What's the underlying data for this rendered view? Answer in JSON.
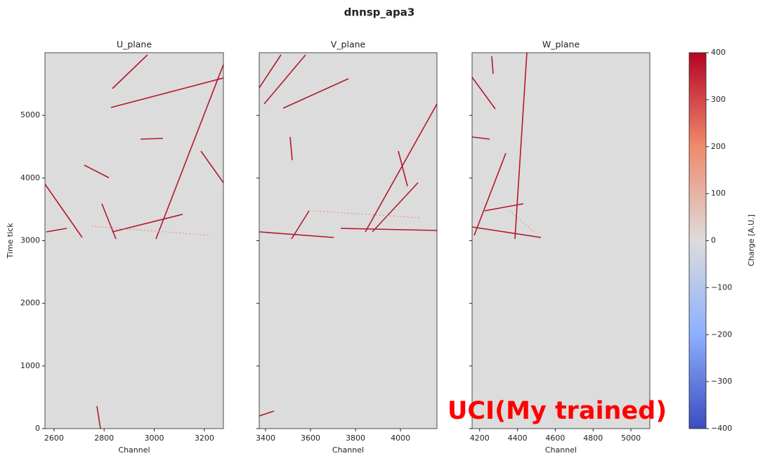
{
  "title": "dnnsp_apa3",
  "annotation": "UCI(My trained)",
  "chart_data": [
    {
      "type": "heatmap",
      "title": "U_plane",
      "x_label": "Channel",
      "y_label": "Time tick",
      "xlim": [
        2564,
        3276
      ],
      "xticks": [
        2600,
        2800,
        3000,
        3200
      ],
      "ylim": [
        0,
        6000
      ],
      "yticks": [
        0,
        1000,
        2000,
        3000,
        4000,
        5000
      ]
    },
    {
      "type": "heatmap",
      "title": "V_plane",
      "x_label": "Channel",
      "xlim": [
        3372,
        4162
      ],
      "xticks": [
        3400,
        3600,
        3800,
        4000
      ],
      "ylim": [
        0,
        6000
      ],
      "yticks": [
        0,
        1000,
        2000,
        3000,
        4000,
        5000
      ]
    },
    {
      "type": "heatmap",
      "title": "W_plane",
      "x_label": "Channel",
      "xlim": [
        4160,
        5100
      ],
      "xticks": [
        4200,
        4400,
        4600,
        4800,
        5000
      ],
      "ylim": [
        0,
        6000
      ],
      "yticks": [
        0,
        1000,
        2000,
        3000,
        4000,
        5000
      ]
    }
  ],
  "colorbar": {
    "label": "Charge [A.U.]",
    "lim": [
      -400,
      400
    ],
    "ticks": [
      {
        "value": -400,
        "label": "−400"
      },
      {
        "value": -300,
        "label": "−300"
      },
      {
        "value": -200,
        "label": "−200"
      },
      {
        "value": -100,
        "label": "−100"
      },
      0,
      100,
      200,
      300,
      400
    ]
  }
}
